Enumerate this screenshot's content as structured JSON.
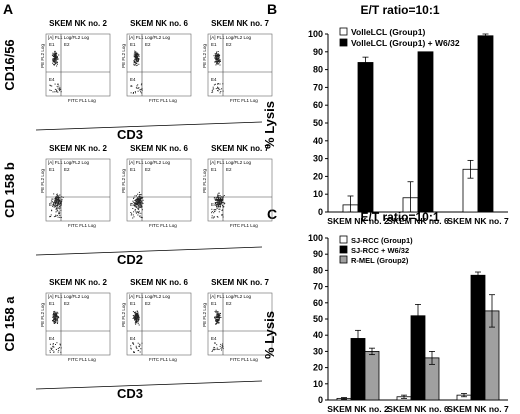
{
  "panel_letters": [
    "A",
    "B",
    "C"
  ],
  "panel_a": {
    "rows": [
      {
        "ylabel": "CD16/56",
        "xlabel": "CD3",
        "sample_titles": [
          "SKEM NK no. 2",
          "SKEM NK no. 6",
          "SKEM NK no. 7"
        ],
        "quad_labels": [
          "E1",
          "E2",
          "E4"
        ]
      },
      {
        "ylabel": "CD 158 b",
        "xlabel": "CD2",
        "sample_titles": [
          "SKEM NK no. 2",
          "SKEM NK no. 6",
          "SKEM NK no. 7"
        ],
        "quad_labels": [
          "E1",
          "E2",
          "E4"
        ]
      },
      {
        "ylabel": "CD 158 a",
        "xlabel": "CD3",
        "sample_titles": [
          "SKEM NK no. 2",
          "SKEM NK no. 6",
          "SKEM NK no. 7"
        ],
        "quad_labels": [
          "E1",
          "E2",
          "E4"
        ]
      }
    ],
    "plot_header": "[A] FL1 Log/FL2 Log",
    "plot_xaxis": "FITC FL1 Log",
    "plot_yaxis": "PE FL2 Log"
  },
  "chart_data": [
    {
      "type": "bar",
      "title": "E/T ratio=10:1",
      "xlabel": "",
      "ylabel": "% Lysis",
      "ylim": [
        0,
        100
      ],
      "yticks": [
        0,
        10,
        20,
        30,
        40,
        50,
        60,
        70,
        80,
        90,
        100
      ],
      "categories": [
        "SKEM NK no. 2",
        "SKEM NK no. 6",
        "SKEM NK no. 7"
      ],
      "legend_position": "top-left",
      "grid": false,
      "series": [
        {
          "name": "VolleLCL (Group1)",
          "color": "#ffffff",
          "values": [
            4,
            8,
            24
          ],
          "errors": [
            5,
            9,
            5
          ]
        },
        {
          "name": "VolleLCL (Group1) + W6/32",
          "color": "#000000",
          "values": [
            84,
            90,
            99
          ],
          "errors": [
            3,
            0,
            1
          ]
        }
      ]
    },
    {
      "type": "bar",
      "title": "E/T ratio=10:1",
      "xlabel": "",
      "ylabel": "% Lysis",
      "ylim": [
        0,
        100
      ],
      "yticks": [
        0,
        10,
        20,
        30,
        40,
        50,
        60,
        70,
        80,
        90,
        100
      ],
      "categories": [
        "SKEM NK no. 2",
        "SKEM NK no. 6",
        "SKEM NK no. 7"
      ],
      "legend_position": "top-left",
      "grid": false,
      "series": [
        {
          "name": "SJ-RCC (Group1)",
          "color": "#ffffff",
          "values": [
            1,
            2,
            3
          ],
          "errors": [
            0.5,
            1,
            1
          ]
        },
        {
          "name": "SJ-RCC + W6/32",
          "color": "#000000",
          "values": [
            38,
            52,
            77
          ],
          "errors": [
            5,
            7,
            2
          ]
        },
        {
          "name": "R-MEL (Group2)",
          "color": "#a0a0a0",
          "values": [
            30,
            26,
            55
          ],
          "errors": [
            2,
            4,
            10
          ]
        }
      ]
    }
  ]
}
